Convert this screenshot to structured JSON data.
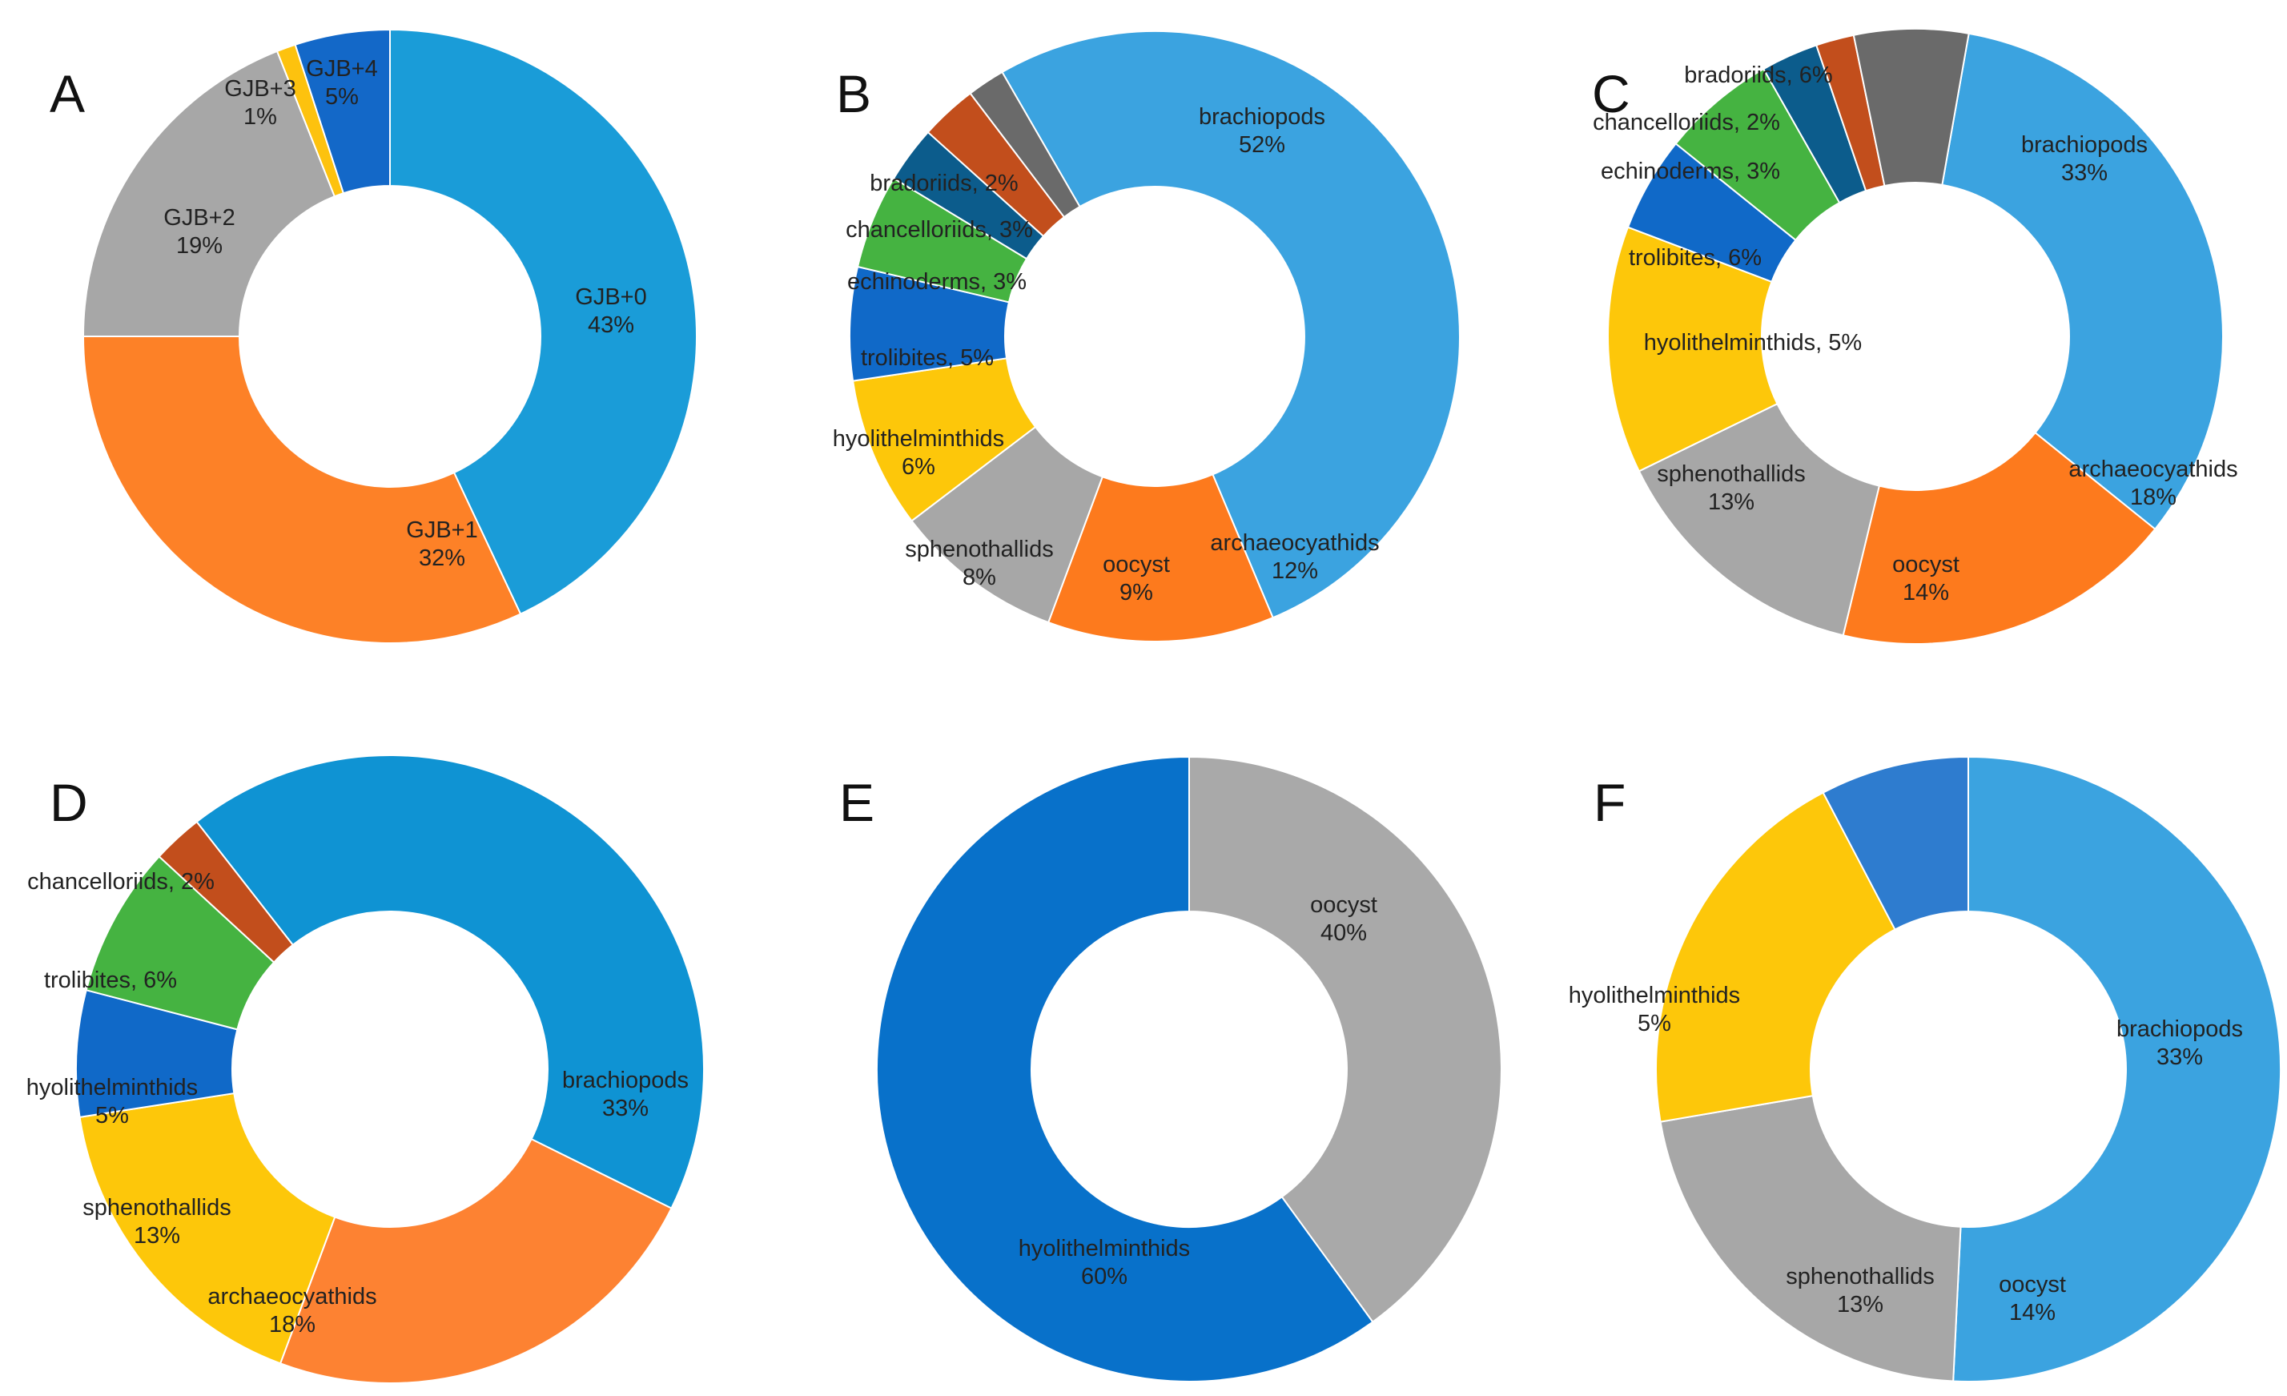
{
  "chart_data": [
    {
      "panel": "A",
      "type": "pie",
      "style": "donut",
      "title": "",
      "slices": [
        {
          "label": "GJB+0",
          "value": 43,
          "pct": "43%",
          "color": "#1a9cd8",
          "inline": false
        },
        {
          "label": "GJB+1",
          "value": 32,
          "pct": "32%",
          "color": "#fd8127",
          "inline": false
        },
        {
          "label": "GJB+2",
          "value": 19,
          "pct": "19%",
          "color": "#a7a7a7",
          "inline": false
        },
        {
          "label": "GJB+3",
          "value": 1,
          "pct": "1%",
          "color": "#fdc20e",
          "inline": false
        },
        {
          "label": "GJB+4",
          "value": 5,
          "pct": "5%",
          "color": "#1368c8",
          "inline": false
        }
      ]
    },
    {
      "panel": "B",
      "type": "pie",
      "style": "donut",
      "title": "",
      "slices": [
        {
          "label": "brachiopods",
          "value": 52,
          "pct": "52%",
          "color": "#3ba3e0",
          "inline": false
        },
        {
          "label": "archaeocyathids",
          "value": 12,
          "pct": "12%",
          "color": "#fd7a1d",
          "inline": false
        },
        {
          "label": "oocyst",
          "value": 9,
          "pct": "9%",
          "color": "#a7a7a7",
          "inline": false
        },
        {
          "label": "sphenothallids",
          "value": 8,
          "pct": "8%",
          "color": "#fdc70a",
          "inline": false
        },
        {
          "label": "hyolithelminthids",
          "value": 6,
          "pct": "6%",
          "color": "#1069c8",
          "inline": false
        },
        {
          "label": "trolibites",
          "value": 5,
          "pct": "5%",
          "color": "#45b341",
          "inline": true
        },
        {
          "label": "echinoderms",
          "value": 3,
          "pct": "3%",
          "color": "#0c5c8c",
          "inline": true
        },
        {
          "label": "chancelloriids",
          "value": 3,
          "pct": "3%",
          "color": "#c24e1c",
          "inline": true
        },
        {
          "label": "bradoriids",
          "value": 2,
          "pct": "2%",
          "color": "#6a6a6a",
          "inline": true
        }
      ]
    },
    {
      "panel": "C",
      "type": "pie",
      "style": "donut",
      "title": "",
      "slices": [
        {
          "label": "brachiopods",
          "value": 33,
          "pct": "33%",
          "color": "#3ba3e0",
          "inline": false
        },
        {
          "label": "archaeocyathids",
          "value": 18,
          "pct": "18%",
          "color": "#fd7a1d",
          "inline": false
        },
        {
          "label": "oocyst",
          "value": 14,
          "pct": "14%",
          "color": "#a7a7a7",
          "inline": false
        },
        {
          "label": "sphenothallids",
          "value": 13,
          "pct": "13%",
          "color": "#fdc70a",
          "inline": false
        },
        {
          "label": "hyolithelminthids",
          "value": 5,
          "pct": "5%",
          "color": "#1069c8",
          "inline": true
        },
        {
          "label": "trolibites",
          "value": 6,
          "pct": "6%",
          "color": "#45b341",
          "inline": true
        },
        {
          "label": "echinoderms",
          "value": 3,
          "pct": "3%",
          "color": "#0c5c8c",
          "inline": true
        },
        {
          "label": "chancelloriids",
          "value": 2,
          "pct": "2%",
          "color": "#c24e1c",
          "inline": true
        },
        {
          "label": "bradoriids",
          "value": 6,
          "pct": "6%",
          "color": "#6a6a6a",
          "inline": true
        }
      ]
    },
    {
      "panel": "D",
      "type": "pie",
      "style": "donut",
      "title": "",
      "slices": [
        {
          "label": "brachiopods",
          "value": 33,
          "pct": "33%",
          "color": "#0f93d3",
          "inline": false
        },
        {
          "label": "archaeocyathids",
          "value": 18,
          "pct": "18%",
          "color": "#fd8232",
          "inline": false
        },
        {
          "label": "sphenothallids",
          "value": 13,
          "pct": "13%",
          "color": "#fdc70a",
          "inline": false
        },
        {
          "label": "hyolithelminthids",
          "value": 5,
          "pct": "5%",
          "color": "#1069c8",
          "inline": false
        },
        {
          "label": "trolibites",
          "value": 6,
          "pct": "6%",
          "color": "#45b341",
          "inline": true
        },
        {
          "label": "chancelloriids",
          "value": 2,
          "pct": "2%",
          "color": "#c24e1c",
          "inline": true
        }
      ]
    },
    {
      "panel": "E",
      "type": "pie",
      "style": "donut",
      "title": "",
      "slices": [
        {
          "label": "oocyst",
          "value": 40,
          "pct": "40%",
          "color": "#a9a9a9",
          "inline": false
        },
        {
          "label": "hyolithelminthids",
          "value": 60,
          "pct": "60%",
          "color": "#0871ca",
          "inline": false
        }
      ]
    },
    {
      "panel": "F",
      "type": "pie",
      "style": "donut",
      "title": "",
      "slices": [
        {
          "label": "brachiopods",
          "value": 33,
          "pct": "33%",
          "color": "#3ba3e0",
          "inline": false
        },
        {
          "label": "oocyst",
          "value": 14,
          "pct": "14%",
          "color": "#a7a7a7",
          "inline": false
        },
        {
          "label": "sphenothallids",
          "value": 13,
          "pct": "13%",
          "color": "#fdc70a",
          "inline": false
        },
        {
          "label": "hyolithelminthids",
          "value": 5,
          "pct": "5%",
          "color": "#2e7ccf",
          "inline": false
        }
      ]
    }
  ]
}
